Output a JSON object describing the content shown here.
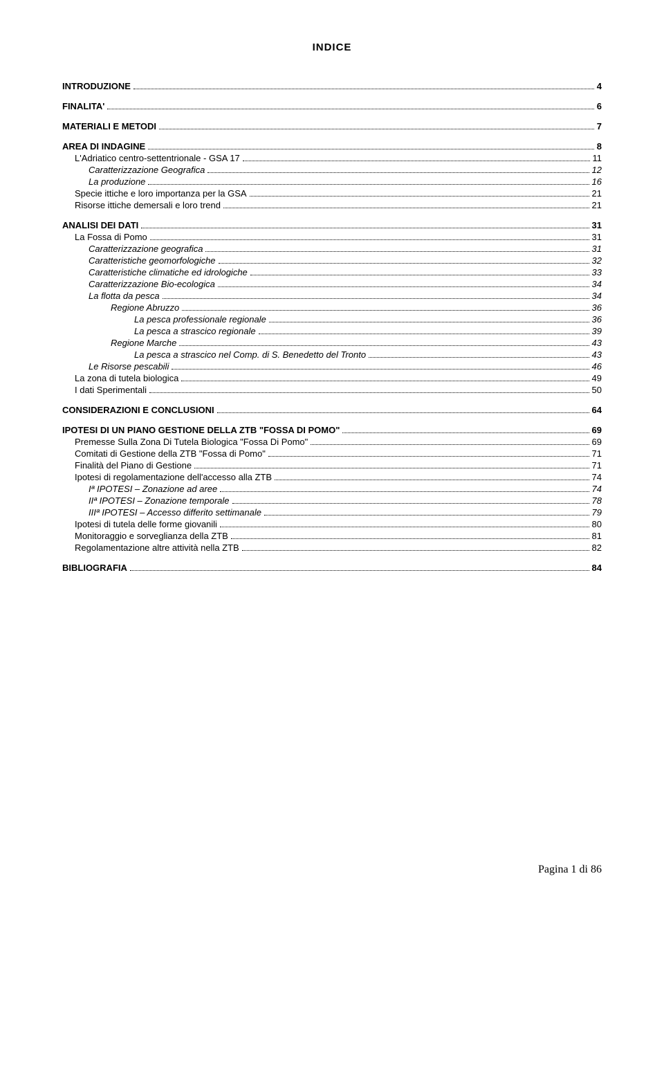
{
  "title": "INDICE",
  "font_size_title": 15,
  "font_size_entry": 13,
  "colors": {
    "text": "#000000",
    "background": "#ffffff"
  },
  "toc": [
    {
      "level": 0,
      "label": "INTRODUZIONE",
      "page": "4"
    },
    {
      "level": 0,
      "label": "FINALITA'",
      "page": "6"
    },
    {
      "level": 0,
      "label": "MATERIALI E METODI",
      "page": "7"
    },
    {
      "level": 0,
      "label": "AREA DI INDAGINE",
      "page": "8"
    },
    {
      "level": 1,
      "label": "L'Adriatico centro-settentrionale - GSA 17",
      "page": "11"
    },
    {
      "level": 2,
      "label": "Caratterizzazione Geografica",
      "page": "12"
    },
    {
      "level": 2,
      "label": "La produzione",
      "page": "16"
    },
    {
      "level": 1,
      "label": "Specie ittiche e loro importanza per la GSA",
      "page": "21"
    },
    {
      "level": 1,
      "label": "Risorse ittiche demersali e loro trend",
      "page": "21"
    },
    {
      "level": 0,
      "label": "ANALISI DEI DATI",
      "page": "31"
    },
    {
      "level": 1,
      "label": "La Fossa di Pomo",
      "page": "31"
    },
    {
      "level": 2,
      "label": "Caratterizzazione geografica",
      "page": "31"
    },
    {
      "level": 2,
      "label": "Caratteristiche geomorfologiche",
      "page": "32"
    },
    {
      "level": 2,
      "label": "Caratteristiche climatiche ed idrologiche",
      "page": "33"
    },
    {
      "level": 2,
      "label": "Caratterizzazione Bio-ecologica",
      "page": "34"
    },
    {
      "level": 2,
      "label": "La flotta da pesca",
      "page": "34"
    },
    {
      "level": 3,
      "label": "Regione Abruzzo",
      "page": "36"
    },
    {
      "level": 4,
      "label": "La pesca professionale regionale",
      "page": "36"
    },
    {
      "level": 4,
      "label": "La pesca a strascico regionale",
      "page": "39"
    },
    {
      "level": 3,
      "label": "Regione Marche",
      "page": "43"
    },
    {
      "level": 4,
      "label": "La pesca a strascico nel Comp. di S. Benedetto del Tronto",
      "page": "43"
    },
    {
      "level": 2,
      "label": "Le Risorse pescabili",
      "page": "46"
    },
    {
      "level": 1,
      "label": "La zona di tutela biologica",
      "page": "49"
    },
    {
      "level": 1,
      "label": "I dati Sperimentali",
      "page": "50"
    },
    {
      "level": 0,
      "label": "CONSIDERAZIONI E CONCLUSIONI",
      "page": "64"
    },
    {
      "level": 0,
      "label": "IPOTESI DI UN PIANO GESTIONE DELLA ZTB \"FOSSA DI POMO\"",
      "page": "69"
    },
    {
      "level": 1,
      "label": "Premesse Sulla Zona Di Tutela Biologica \"Fossa Di Pomo\"",
      "page": "69"
    },
    {
      "level": 1,
      "label": "Comitati di Gestione della ZTB \"Fossa di Pomo\"",
      "page": "71"
    },
    {
      "level": 1,
      "label": "Finalità del Piano di Gestione",
      "page": "71"
    },
    {
      "level": 1,
      "label": "Ipotesi di regolamentazione dell'accesso alla ZTB",
      "page": "74"
    },
    {
      "level": 2,
      "label": "Iª IPOTESI – Zonazione ad aree",
      "page": "74"
    },
    {
      "level": 2,
      "label": "IIª IPOTESI – Zonazione temporale",
      "page": "78"
    },
    {
      "level": 2,
      "label": "IIIª IPOTESI – Accesso differito settimanale",
      "page": "79"
    },
    {
      "level": 1,
      "label": "Ipotesi di tutela delle forme giovanili",
      "page": "80"
    },
    {
      "level": 1,
      "label": "Monitoraggio e sorveglianza della ZTB",
      "page": "81"
    },
    {
      "level": 1,
      "label": "Regolamentazione altre attività nella ZTB",
      "page": "82"
    },
    {
      "level": 0,
      "label": "BIBLIOGRAFIA",
      "page": "84"
    }
  ],
  "footer": "Pagina 1 di 86"
}
